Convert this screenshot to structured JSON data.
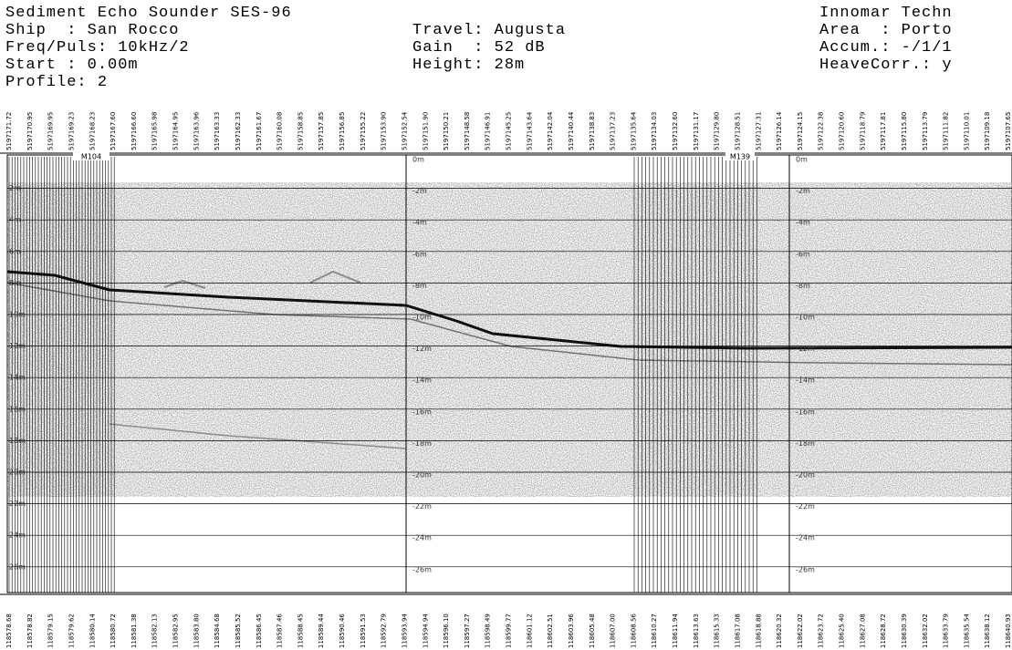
{
  "header": {
    "title": "Sediment Echo Sounder SES-96",
    "company": "Innomar Techn",
    "ship": "Ship  : San Rocco",
    "travel": "Travel: Augusta",
    "area": "Area  : Porto",
    "freq_puls": "Freq/Puls: 10kHz/2",
    "gain": "Gain  : 52 dB",
    "accum": "Accum.: -/1/1",
    "start": "Start : 0.00m",
    "height": "Height: 28m",
    "heave_corr": "HeaveCorr.: y",
    "profile": "Profile: 2"
  },
  "markers": [
    "M104",
    "M139"
  ],
  "depth_labels_left": [
    "2m",
    "4m",
    "6m",
    "8m",
    "10m",
    "12m",
    "14m",
    "16m",
    "18m",
    "20m",
    "22m",
    "24m",
    "26m"
  ],
  "depth_labels_middle": [
    "0m",
    "-2m",
    "-4m",
    "-6m",
    "-8m",
    "-10m",
    "-12m",
    "-14m",
    "-16m",
    "-18m",
    "-20m",
    "-22m",
    "-24m",
    "-26m"
  ],
  "depth_labels_right": [
    "0m",
    "-2m",
    "-4m",
    "-6m",
    "-8m",
    "-10m",
    "-12m",
    "-14m",
    "-16m",
    "-18m",
    "-20m",
    "-22m",
    "-24m",
    "-26m"
  ],
  "top_coordinates": [
    "5197171.72",
    "5197170.95",
    "5197169.95",
    "5197169.23",
    "5197168.23",
    "5197167.60",
    "5197166.60",
    "5197165.98",
    "5197164.95",
    "5197163.96",
    "5197163.33",
    "5197162.33",
    "5197161.67",
    "5197160.08",
    "5197158.85",
    "5197157.85",
    "5197156.85",
    "5197155.22",
    "5197153.90",
    "5197152.54",
    "5197151.90",
    "5197150.21",
    "5197148.58",
    "5197146.91",
    "5197145.25",
    "5197143.64",
    "5197142.04",
    "5197140.44",
    "5197138.83",
    "5197137.23",
    "5197135.64",
    "5197134.03",
    "5197132.60",
    "5197131.17",
    "5197129.80",
    "5197128.51",
    "5197127.31",
    "5197126.14",
    "5197124.15",
    "5197122.38",
    "5197120.60",
    "5197118.79",
    "5197117.81",
    "5197115.80",
    "5197113.79",
    "5197111.82",
    "5197110.01",
    "5197109.18",
    "5197107.65"
  ],
  "bottom_coordinates": [
    "118578.68",
    "118578.82",
    "118579.15",
    "118579.62",
    "118580.14",
    "118580.72",
    "118581.38",
    "118582.13",
    "118582.95",
    "118583.80",
    "118584.68",
    "118585.52",
    "118586.45",
    "118587.46",
    "118588.45",
    "118589.44",
    "118590.46",
    "118591.53",
    "118592.79",
    "118593.94",
    "118594.94",
    "118596.10",
    "118597.27",
    "118598.49",
    "118599.77",
    "118601.12",
    "118602.51",
    "118603.96",
    "118605.48",
    "118607.00",
    "118608.56",
    "118610.27",
    "118611.94",
    "118613.63",
    "118615.33",
    "118617.08",
    "118618.88",
    "118620.32",
    "118622.02",
    "118623.72",
    "118625.40",
    "118627.08",
    "118628.72",
    "118630.39",
    "118632.02",
    "118633.79",
    "118635.54",
    "118638.12",
    "118640.93"
  ]
}
